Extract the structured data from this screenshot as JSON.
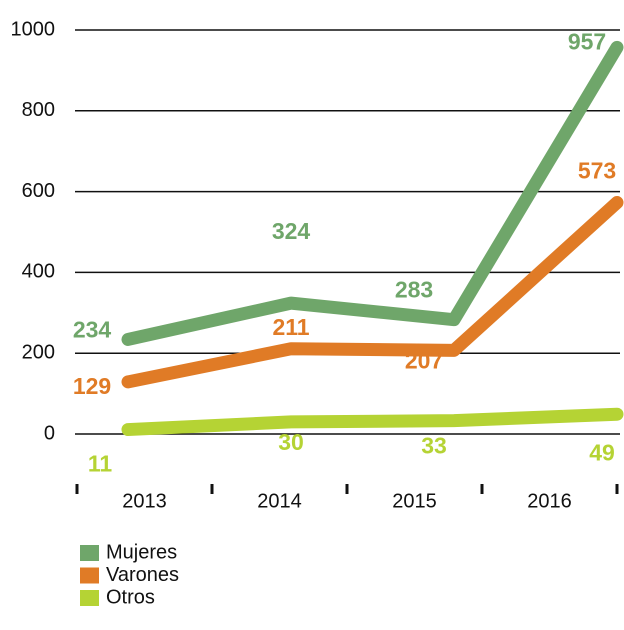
{
  "chart_data": {
    "type": "line",
    "categories": [
      "2013",
      "2014",
      "2015",
      "2016"
    ],
    "series": [
      {
        "name": "Mujeres",
        "color": "#6fa66a",
        "values": [
          234,
          324,
          283,
          957
        ]
      },
      {
        "name": "Varones",
        "color": "#e07b26",
        "values": [
          129,
          211,
          207,
          573
        ]
      },
      {
        "name": "Otros",
        "color": "#b5d334",
        "values": [
          11,
          30,
          33,
          49
        ]
      }
    ],
    "ylim": [
      0,
      1000
    ],
    "yticks": [
      0,
      200,
      400,
      600,
      800,
      1000
    ],
    "grid": true,
    "legend": "bottom"
  }
}
